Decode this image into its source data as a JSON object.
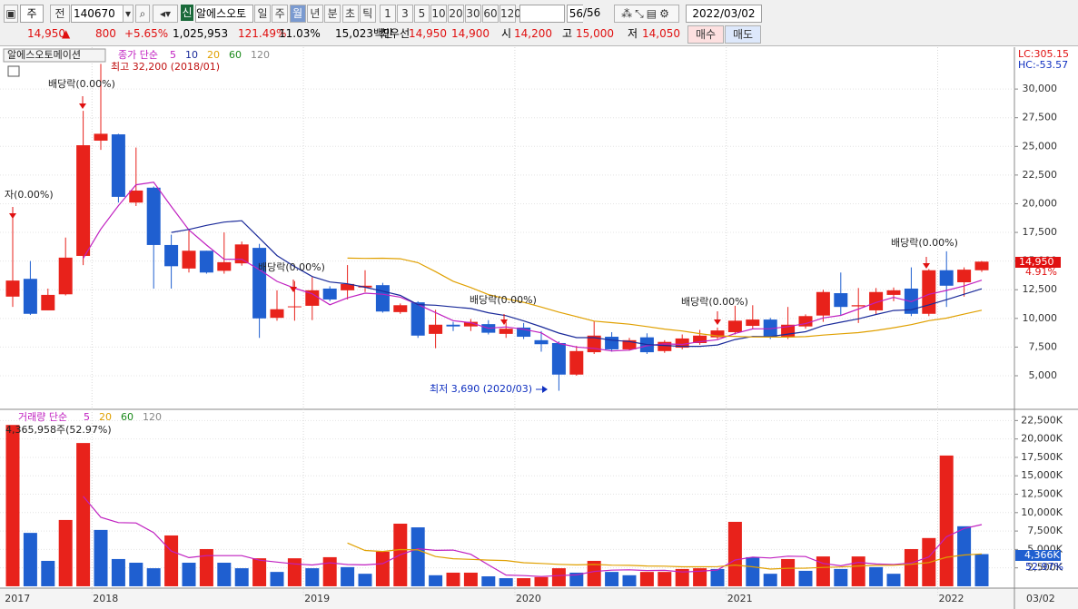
{
  "toolbar": {
    "market": "주",
    "prev": "전",
    "code": "140670",
    "badge": "신",
    "name": "알에스오토",
    "periods": [
      "일",
      "주",
      "월",
      "년",
      "분",
      "초",
      "틱"
    ],
    "units": [
      1,
      3,
      5,
      10,
      20,
      30,
      60,
      120
    ],
    "count": 56,
    "total": "/56",
    "date": "2022/03/02"
  },
  "info": {
    "price": "14,950",
    "arrow": "▲",
    "change": "800",
    "rate": "+5.65%",
    "volume": "1,025,953",
    "vol_ratio": "121.49%",
    "turnover": "11.03%",
    "amount": "15,023백만",
    "best_label": "최우선",
    "ask": "14,950",
    "bid": "14,900",
    "open_label": "시",
    "open": "14,200",
    "high_label": "고",
    "high": "15,000",
    "low_label": "저",
    "low": "14,050",
    "buy": "매수",
    "sell": "매도"
  },
  "chart_data": [
    {
      "type": "candlestick",
      "title": "알에스오토메이션",
      "ma_label": "종가 단순",
      "ma": [
        {
          "period": 5,
          "color": "#c020c0"
        },
        {
          "period": 10,
          "color": "#1a2a9a"
        },
        {
          "period": 20,
          "color": "#e0a000"
        },
        {
          "period": 60,
          "color": "#1a8a1a"
        },
        {
          "period": 120,
          "color": "#888888"
        }
      ],
      "categories": [
        "2017",
        null,
        null,
        null,
        null,
        "2018",
        null,
        null,
        null,
        null,
        null,
        null,
        null,
        null,
        null,
        null,
        null,
        "2019",
        null,
        null,
        null,
        null,
        null,
        null,
        null,
        null,
        null,
        null,
        null,
        "2020",
        null,
        null,
        null,
        null,
        null,
        null,
        null,
        null,
        null,
        null,
        null,
        "2021",
        null,
        null,
        null,
        null,
        null,
        null,
        null,
        null,
        null,
        null,
        null,
        "2022",
        null,
        null
      ],
      "end_label": "03/02",
      "open": [
        11900,
        13450,
        10700,
        12100,
        15450,
        25500,
        26050,
        20100,
        21400,
        16400,
        14350,
        15900,
        14150,
        14800,
        16150,
        10050,
        11000,
        11100,
        12600,
        12450,
        12700,
        12900,
        10550,
        11400,
        8650,
        9450,
        9300,
        9500,
        8650,
        9200,
        8100,
        7850,
        5100,
        7050,
        8400,
        7300,
        8350,
        7150,
        7450,
        7850,
        8350,
        8800,
        9350,
        9900,
        8350,
        9300,
        10250,
        12200,
        11050,
        10700,
        12050,
        12600,
        10400,
        14200,
        13150,
        14200
      ],
      "high": [
        18750,
        15000,
        12600,
        17050,
        28100,
        32200,
        26100,
        24900,
        21500,
        17300,
        17650,
        15900,
        17500,
        16700,
        16500,
        12450,
        13250,
        13600,
        12800,
        14650,
        14200,
        13100,
        11300,
        11500,
        10750,
        9700,
        9950,
        9850,
        9700,
        9600,
        8900,
        8000,
        7600,
        9750,
        8800,
        8300,
        8700,
        8100,
        8600,
        9000,
        9200,
        11100,
        11150,
        10050,
        11000,
        10350,
        12500,
        14000,
        12650,
        12650,
        12700,
        14450,
        14300,
        15850,
        14450,
        15000
      ],
      "low": [
        11000,
        10300,
        10700,
        12000,
        14650,
        24700,
        20100,
        19800,
        12600,
        12600,
        14000,
        13900,
        13900,
        14600,
        8300,
        9800,
        9800,
        9850,
        11500,
        11650,
        12300,
        10500,
        10400,
        8300,
        7400,
        8900,
        8900,
        8600,
        8300,
        8200,
        7100,
        3690,
        5000,
        6900,
        7100,
        7200,
        6900,
        7000,
        7300,
        7700,
        8200,
        8600,
        9100,
        8200,
        8200,
        9100,
        9700,
        10300,
        9600,
        10300,
        11500,
        10200,
        10200,
        11000,
        11900,
        14050
      ],
      "close": [
        13300,
        10400,
        12050,
        15300,
        25100,
        26100,
        20600,
        21150,
        16400,
        14550,
        15900,
        14000,
        14900,
        16450,
        10000,
        10800,
        11050,
        12450,
        11650,
        13000,
        12850,
        10600,
        11150,
        8500,
        9450,
        9300,
        9700,
        8750,
        9100,
        8400,
        7750,
        5100,
        7150,
        8500,
        7300,
        8100,
        7050,
        7950,
        8250,
        8500,
        8950,
        9800,
        9900,
        8350,
        9450,
        10200,
        12300,
        11000,
        11150,
        12300,
        12450,
        10400,
        14200,
        12850,
        14250,
        14950
      ],
      "up_color": "#e8221b",
      "down_color": "#1f5fd0",
      "ylim": [
        2150,
        33650
      ],
      "yticks": [
        {
          "value": 5000,
          "label": "5,000"
        },
        {
          "value": 7500,
          "label": "7,500"
        },
        {
          "value": 10000,
          "label": "10,000"
        },
        {
          "value": 12500,
          "label": "12,500"
        },
        {
          "value": 15000,
          "label": "15,000"
        },
        {
          "value": 17500,
          "label": "17,500"
        },
        {
          "value": 20000,
          "label": "20,000"
        },
        {
          "value": 22500,
          "label": "22,500"
        },
        {
          "value": 25000,
          "label": "25,000"
        },
        {
          "value": 27500,
          "label": "27,500"
        },
        {
          "value": 30000,
          "label": "30,000"
        }
      ],
      "high_note": "최고 32,200 (2018/01)",
      "low_note": "최저 3,690 (2020/03)",
      "dividends": [
        "자(0.00%)",
        "배당락(0.00%)",
        "배당락(0.00%)",
        "배당락(0.00%)",
        "배당락(0.00%)",
        "배당락(0.00%)"
      ],
      "last_label": "14,950",
      "last_change": "4.91%",
      "lc": "LC:305.15",
      "hc": "HC:-53.57"
    },
    {
      "type": "bar",
      "title": "거래량 단순",
      "ma": [
        {
          "period": 5,
          "color": "#c020c0"
        },
        {
          "period": 20,
          "color": "#e0a000"
        },
        {
          "period": 60,
          "color": "#1a8a1a"
        },
        {
          "period": 120,
          "color": "#888888"
        }
      ],
      "values": [
        21900,
        7250,
        3450,
        9000,
        19450,
        7650,
        3700,
        3200,
        2450,
        6900,
        3200,
        5050,
        3200,
        2450,
        3800,
        1950,
        3800,
        2450,
        3950,
        2600,
        1700,
        4700,
        8500,
        8000,
        1500,
        1850,
        1850,
        1350,
        1100,
        1100,
        1250,
        2450,
        1850,
        3450,
        1950,
        1500,
        1950,
        1950,
        2350,
        2450,
        2350,
        8750,
        3950,
        1700,
        3700,
        2100,
        4050,
        2350,
        4050,
        2600,
        1700,
        5050,
        6550,
        17750,
        8150,
        4366
      ],
      "up_color": "#e8221b",
      "down_color": "#1f5fd0",
      "ylim": [
        -250,
        23900
      ],
      "yticks": [
        {
          "value": 2500,
          "label": "2,500K"
        },
        {
          "value": 5000,
          "label": "5,000K"
        },
        {
          "value": 7500,
          "label": "7,500K"
        },
        {
          "value": 10000,
          "label": "10,000K"
        },
        {
          "value": 12500,
          "label": "12,500K"
        },
        {
          "value": 15000,
          "label": "15,000K"
        },
        {
          "value": 17500,
          "label": "17,500K"
        },
        {
          "value": 20000,
          "label": "20,000K"
        },
        {
          "value": 22500,
          "label": "22,500K"
        }
      ],
      "note": "4,365,958주(52.97%)",
      "last_label": "4,366K",
      "last_ratio": "52.97%"
    }
  ]
}
